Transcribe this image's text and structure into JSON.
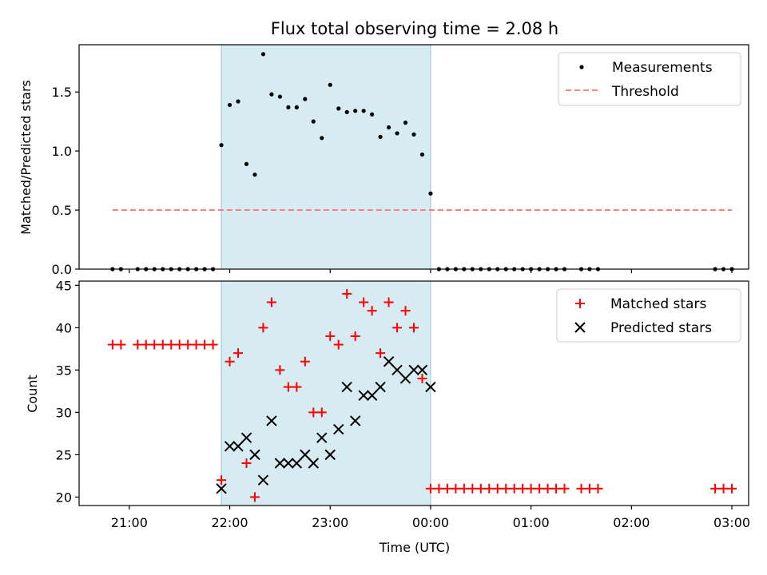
{
  "chart_data": [
    {
      "type": "scatter",
      "title": "Flux total observing time = 2.08 h",
      "ylabel": "Matched/Predicted stars",
      "xlabel": "",
      "ylim": [
        0,
        1.9
      ],
      "yticks": [
        "0.0",
        "0.5",
        "1.0",
        "1.5"
      ],
      "xlim": [
        "20:30",
        "03:10"
      ],
      "x_ticks_shown": false,
      "shaded_interval": {
        "start": "21:55",
        "end": "00:00",
        "color": "#add8e6"
      },
      "legend": {
        "position": "upper right",
        "entries": [
          "Measurements",
          "Threshold"
        ]
      },
      "series": [
        {
          "name": "Measurements",
          "kind": "scatter",
          "color": "#000000",
          "points": [
            [
              "20:50",
              0
            ],
            [
              "20:55",
              0
            ],
            [
              "21:05",
              0
            ],
            [
              "21:10",
              0
            ],
            [
              "21:15",
              0
            ],
            [
              "21:20",
              0
            ],
            [
              "21:25",
              0
            ],
            [
              "21:30",
              0
            ],
            [
              "21:35",
              0
            ],
            [
              "21:40",
              0
            ],
            [
              "21:45",
              0
            ],
            [
              "21:50",
              0
            ],
            [
              "21:55",
              1.05
            ],
            [
              "22:00",
              1.39
            ],
            [
              "22:05",
              1.42
            ],
            [
              "22:10",
              0.89
            ],
            [
              "22:15",
              0.8
            ],
            [
              "22:20",
              1.82
            ],
            [
              "22:25",
              1.48
            ],
            [
              "22:30",
              1.46
            ],
            [
              "22:35",
              1.37
            ],
            [
              "22:40",
              1.37
            ],
            [
              "22:45",
              1.44
            ],
            [
              "22:50",
              1.25
            ],
            [
              "22:55",
              1.11
            ],
            [
              "23:00",
              1.56
            ],
            [
              "23:05",
              1.36
            ],
            [
              "23:10",
              1.33
            ],
            [
              "23:15",
              1.34
            ],
            [
              "23:20",
              1.34
            ],
            [
              "23:25",
              1.31
            ],
            [
              "23:30",
              1.12
            ],
            [
              "23:35",
              1.2
            ],
            [
              "23:40",
              1.15
            ],
            [
              "23:45",
              1.24
            ],
            [
              "23:50",
              1.14
            ],
            [
              "23:55",
              0.97
            ],
            [
              "00:00",
              0.64
            ],
            [
              "00:05",
              0
            ],
            [
              "00:10",
              0
            ],
            [
              "00:15",
              0
            ],
            [
              "00:20",
              0
            ],
            [
              "00:25",
              0
            ],
            [
              "00:30",
              0
            ],
            [
              "00:35",
              0
            ],
            [
              "00:40",
              0
            ],
            [
              "00:45",
              0
            ],
            [
              "00:50",
              0
            ],
            [
              "00:55",
              0
            ],
            [
              "01:00",
              0
            ],
            [
              "01:05",
              0
            ],
            [
              "01:10",
              0
            ],
            [
              "01:15",
              0
            ],
            [
              "01:20",
              0
            ],
            [
              "01:30",
              0
            ],
            [
              "01:35",
              0
            ],
            [
              "01:40",
              0
            ],
            [
              "02:50",
              0
            ],
            [
              "02:55",
              0
            ],
            [
              "03:00",
              0
            ]
          ]
        },
        {
          "name": "Threshold",
          "kind": "dashed-line",
          "color": "#ff7f7f",
          "points": [
            [
              "20:50",
              0.5
            ],
            [
              "03:00",
              0.5
            ]
          ]
        }
      ]
    },
    {
      "type": "scatter",
      "title": "",
      "ylabel": "Count",
      "xlabel": "Time (UTC)",
      "ylim": [
        19,
        45.5
      ],
      "yticks": [
        "20",
        "25",
        "30",
        "35",
        "40",
        "45"
      ],
      "xlim": [
        "20:30",
        "03:10"
      ],
      "xticks": [
        "21:00",
        "22:00",
        "23:00",
        "00:00",
        "01:00",
        "02:00",
        "03:00"
      ],
      "shaded_interval": {
        "start": "21:55",
        "end": "00:00",
        "color": "#add8e6"
      },
      "legend": {
        "position": "upper right",
        "entries": [
          "Matched stars",
          "Predicted stars"
        ]
      },
      "series": [
        {
          "name": "Matched stars",
          "kind": "plus",
          "color": "#ff0000",
          "points": [
            [
              "20:50",
              38
            ],
            [
              "20:55",
              38
            ],
            [
              "21:05",
              38
            ],
            [
              "21:10",
              38
            ],
            [
              "21:15",
              38
            ],
            [
              "21:20",
              38
            ],
            [
              "21:25",
              38
            ],
            [
              "21:30",
              38
            ],
            [
              "21:35",
              38
            ],
            [
              "21:40",
              38
            ],
            [
              "21:45",
              38
            ],
            [
              "21:50",
              38
            ],
            [
              "21:55",
              22
            ],
            [
              "22:00",
              36
            ],
            [
              "22:05",
              37
            ],
            [
              "22:10",
              24
            ],
            [
              "22:15",
              20
            ],
            [
              "22:20",
              40
            ],
            [
              "22:25",
              43
            ],
            [
              "22:30",
              35
            ],
            [
              "22:35",
              33
            ],
            [
              "22:40",
              33
            ],
            [
              "22:45",
              36
            ],
            [
              "22:50",
              30
            ],
            [
              "22:55",
              30
            ],
            [
              "23:00",
              39
            ],
            [
              "23:05",
              38
            ],
            [
              "23:10",
              44
            ],
            [
              "23:15",
              39
            ],
            [
              "23:20",
              43
            ],
            [
              "23:25",
              42
            ],
            [
              "23:30",
              37
            ],
            [
              "23:35",
              43
            ],
            [
              "23:40",
              40
            ],
            [
              "23:45",
              42
            ],
            [
              "23:50",
              40
            ],
            [
              "23:55",
              34
            ],
            [
              "00:00",
              21
            ],
            [
              "00:05",
              21
            ],
            [
              "00:10",
              21
            ],
            [
              "00:15",
              21
            ],
            [
              "00:20",
              21
            ],
            [
              "00:25",
              21
            ],
            [
              "00:30",
              21
            ],
            [
              "00:35",
              21
            ],
            [
              "00:40",
              21
            ],
            [
              "00:45",
              21
            ],
            [
              "00:50",
              21
            ],
            [
              "00:55",
              21
            ],
            [
              "01:00",
              21
            ],
            [
              "01:05",
              21
            ],
            [
              "01:10",
              21
            ],
            [
              "01:15",
              21
            ],
            [
              "01:20",
              21
            ],
            [
              "01:30",
              21
            ],
            [
              "01:35",
              21
            ],
            [
              "01:40",
              21
            ],
            [
              "02:50",
              21
            ],
            [
              "02:55",
              21
            ],
            [
              "03:00",
              21
            ]
          ]
        },
        {
          "name": "Predicted stars",
          "kind": "x",
          "color": "#000000",
          "points": [
            [
              "21:55",
              21
            ],
            [
              "22:00",
              26
            ],
            [
              "22:05",
              26
            ],
            [
              "22:10",
              27
            ],
            [
              "22:15",
              25
            ],
            [
              "22:20",
              22
            ],
            [
              "22:25",
              29
            ],
            [
              "22:30",
              24
            ],
            [
              "22:35",
              24
            ],
            [
              "22:40",
              24
            ],
            [
              "22:45",
              25
            ],
            [
              "22:50",
              24
            ],
            [
              "22:55",
              27
            ],
            [
              "23:00",
              25
            ],
            [
              "23:05",
              28
            ],
            [
              "23:10",
              33
            ],
            [
              "23:15",
              29
            ],
            [
              "23:20",
              32
            ],
            [
              "23:25",
              32
            ],
            [
              "23:30",
              33
            ],
            [
              "23:35",
              36
            ],
            [
              "23:40",
              35
            ],
            [
              "23:45",
              34
            ],
            [
              "23:50",
              35
            ],
            [
              "23:55",
              35
            ],
            [
              "00:00",
              33
            ]
          ]
        }
      ]
    }
  ]
}
